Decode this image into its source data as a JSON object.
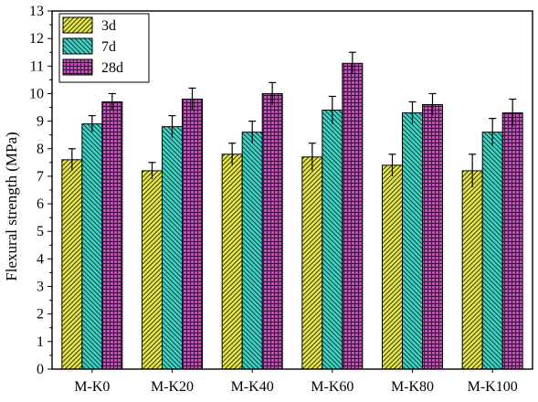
{
  "chart_data": {
    "type": "bar",
    "title": "",
    "xlabel": "",
    "ylabel": "Flexural strength (MPa)",
    "ylim": [
      0,
      13
    ],
    "yticks": [
      0,
      1,
      2,
      3,
      4,
      5,
      6,
      7,
      8,
      9,
      10,
      11,
      12,
      13
    ],
    "grid": false,
    "legend_position": "top-left",
    "categories": [
      "M-K0",
      "M-K20",
      "M-K40",
      "M-K60",
      "M-K80",
      "M-K100"
    ],
    "series": [
      {
        "name": "3d",
        "color": "#e8e84a",
        "hatch": "diagonal",
        "values": [
          7.6,
          7.2,
          7.8,
          7.7,
          7.4,
          7.2
        ],
        "errors": [
          0.4,
          0.3,
          0.4,
          0.5,
          0.4,
          0.6
        ]
      },
      {
        "name": "7d",
        "color": "#3fd6c8",
        "hatch": "backdiagonal",
        "values": [
          8.9,
          8.8,
          8.6,
          9.4,
          9.3,
          8.6
        ],
        "errors": [
          0.3,
          0.4,
          0.4,
          0.5,
          0.4,
          0.5
        ]
      },
      {
        "name": "28d",
        "color": "#d040c8",
        "hatch": "grid",
        "values": [
          9.7,
          9.8,
          10.0,
          11.1,
          9.6,
          9.3
        ],
        "errors": [
          0.3,
          0.4,
          0.4,
          0.4,
          0.4,
          0.5
        ]
      }
    ]
  }
}
